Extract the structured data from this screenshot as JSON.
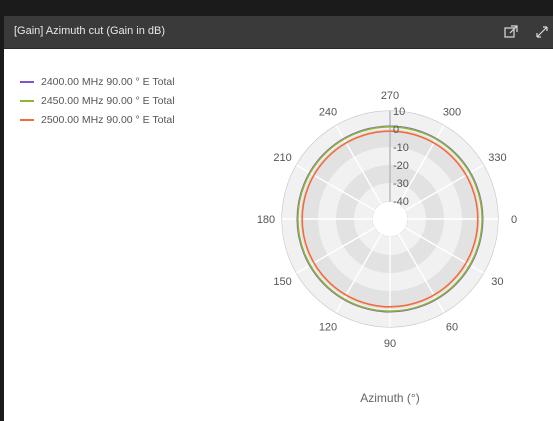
{
  "window": {
    "title": "[Gain] Azimuth cut (Gain in dB)",
    "icons": [
      "popout-icon",
      "expand-icon"
    ]
  },
  "colors": {
    "titlebar": "#3a3a3a",
    "ring_light": "#f1f1f1",
    "ring_dark": "#e2e2e2"
  },
  "chart_data": {
    "type": "polar-line",
    "title": "[Gain] Azimuth cut (Gain in dB)",
    "angle_axis": {
      "label": "Azimuth (°)",
      "ticks": [
        "270",
        "300",
        "330",
        "0",
        "30",
        "60",
        "90",
        "120",
        "150",
        "180",
        "210",
        "240"
      ],
      "tick_values": [
        270,
        300,
        330,
        0,
        30,
        60,
        90,
        120,
        150,
        180,
        210,
        240
      ]
    },
    "radial_axis": {
      "unit": "dB",
      "range": [
        -50,
        10
      ],
      "ticks": [
        "10",
        "0",
        "-10",
        "-20",
        "-30",
        "-40"
      ],
      "tick_values": [
        10,
        0,
        -10,
        -20,
        -30,
        -40
      ]
    },
    "legend_position": "top-left",
    "series": [
      {
        "name": "2400.00 MHz 90.00 ° E Total",
        "color": "#7b52d8",
        "gain_db": 1.5
      },
      {
        "name": "2450.00 MHz 90.00 ° E Total",
        "color": "#8db82e",
        "gain_db": 1.2
      },
      {
        "name": "2500.00 MHz 90.00 ° E Total",
        "color": "#f26a3f",
        "gain_db": -1.2
      }
    ]
  }
}
